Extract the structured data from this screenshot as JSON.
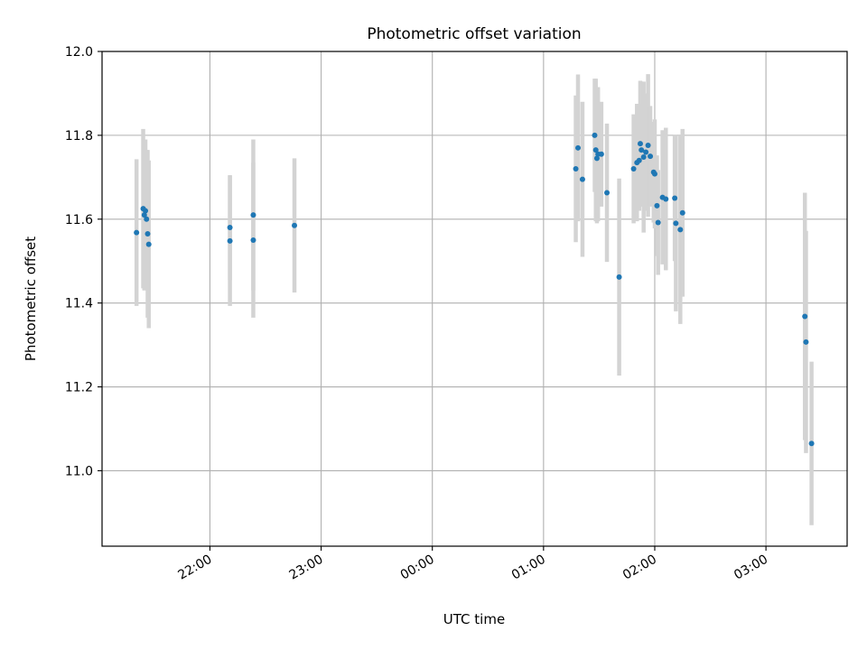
{
  "chart_data": {
    "type": "scatter",
    "title": "Photometric offset variation",
    "xlabel": "UTC time",
    "ylabel": "Photometric offset",
    "x_unit": "hours since 22:00 UTC",
    "xlim": [
      -0.97,
      5.73
    ],
    "ylim": [
      10.82,
      12.0
    ],
    "x_ticks": [
      {
        "value": 0,
        "label": "22:00"
      },
      {
        "value": 1,
        "label": "23:00"
      },
      {
        "value": 2,
        "label": "00:00"
      },
      {
        "value": 3,
        "label": "01:00"
      },
      {
        "value": 4,
        "label": "02:00"
      },
      {
        "value": 5,
        "label": "03:00"
      }
    ],
    "y_ticks": [
      {
        "value": 11.0,
        "label": "11.0"
      },
      {
        "value": 11.2,
        "label": "11.2"
      },
      {
        "value": 11.4,
        "label": "11.4"
      },
      {
        "value": 11.6,
        "label": "11.6"
      },
      {
        "value": 11.8,
        "label": "11.8"
      },
      {
        "value": 12.0,
        "label": "12.0"
      }
    ],
    "grid": true,
    "colors": {
      "point": "#1f77b4",
      "errorbar": "#d3d3d3",
      "grid": "#b0b0b0",
      "axis": "#000000"
    },
    "series": [
      {
        "name": "Photometric offset",
        "points": [
          {
            "x": -0.66,
            "y": 11.568,
            "err": 0.175
          },
          {
            "x": -0.6,
            "y": 11.625,
            "err": 0.19
          },
          {
            "x": -0.59,
            "y": 11.61,
            "err": 0.18
          },
          {
            "x": -0.58,
            "y": 11.62,
            "err": 0.17
          },
          {
            "x": -0.57,
            "y": 11.6,
            "err": 0.165
          },
          {
            "x": -0.56,
            "y": 11.565,
            "err": 0.2
          },
          {
            "x": -0.55,
            "y": 11.54,
            "err": 0.2
          },
          {
            "x": 0.18,
            "y": 11.58,
            "err": 0.125
          },
          {
            "x": 0.18,
            "y": 11.548,
            "err": 0.155
          },
          {
            "x": 0.39,
            "y": 11.61,
            "err": 0.18
          },
          {
            "x": 0.39,
            "y": 11.55,
            "err": 0.185
          },
          {
            "x": 0.76,
            "y": 11.585,
            "err": 0.16
          },
          {
            "x": 3.29,
            "y": 11.72,
            "err": 0.175
          },
          {
            "x": 3.31,
            "y": 11.77,
            "err": 0.175
          },
          {
            "x": 3.35,
            "y": 11.695,
            "err": 0.185
          },
          {
            "x": 3.46,
            "y": 11.8,
            "err": 0.135
          },
          {
            "x": 3.47,
            "y": 11.765,
            "err": 0.17
          },
          {
            "x": 3.48,
            "y": 11.745,
            "err": 0.155
          },
          {
            "x": 3.49,
            "y": 11.755,
            "err": 0.16
          },
          {
            "x": 3.52,
            "y": 11.755,
            "err": 0.125
          },
          {
            "x": 3.57,
            "y": 11.663,
            "err": 0.165
          },
          {
            "x": 3.68,
            "y": 11.462,
            "err": 0.235
          },
          {
            "x": 3.81,
            "y": 11.72,
            "err": 0.13
          },
          {
            "x": 3.84,
            "y": 11.735,
            "err": 0.14
          },
          {
            "x": 3.86,
            "y": 11.74,
            "err": 0.12
          },
          {
            "x": 3.87,
            "y": 11.78,
            "err": 0.15
          },
          {
            "x": 3.88,
            "y": 11.765,
            "err": 0.11
          },
          {
            "x": 3.9,
            "y": 11.748,
            "err": 0.18
          },
          {
            "x": 3.92,
            "y": 11.76,
            "err": 0.14
          },
          {
            "x": 3.94,
            "y": 11.776,
            "err": 0.17
          },
          {
            "x": 3.96,
            "y": 11.75,
            "err": 0.12
          },
          {
            "x": 3.99,
            "y": 11.712,
            "err": 0.12
          },
          {
            "x": 4.0,
            "y": 11.708,
            "err": 0.13
          },
          {
            "x": 4.02,
            "y": 11.632,
            "err": 0.12
          },
          {
            "x": 4.03,
            "y": 11.592,
            "err": 0.125
          },
          {
            "x": 4.07,
            "y": 11.652,
            "err": 0.16
          },
          {
            "x": 4.1,
            "y": 11.648,
            "err": 0.17
          },
          {
            "x": 4.18,
            "y": 11.65,
            "err": 0.15
          },
          {
            "x": 4.19,
            "y": 11.59,
            "err": 0.21
          },
          {
            "x": 4.23,
            "y": 11.575,
            "err": 0.225
          },
          {
            "x": 4.25,
            "y": 11.615,
            "err": 0.2
          },
          {
            "x": 5.35,
            "y": 11.368,
            "err": 0.295
          },
          {
            "x": 5.36,
            "y": 11.307,
            "err": 0.265
          },
          {
            "x": 5.41,
            "y": 11.065,
            "err": 0.195
          }
        ]
      }
    ]
  }
}
